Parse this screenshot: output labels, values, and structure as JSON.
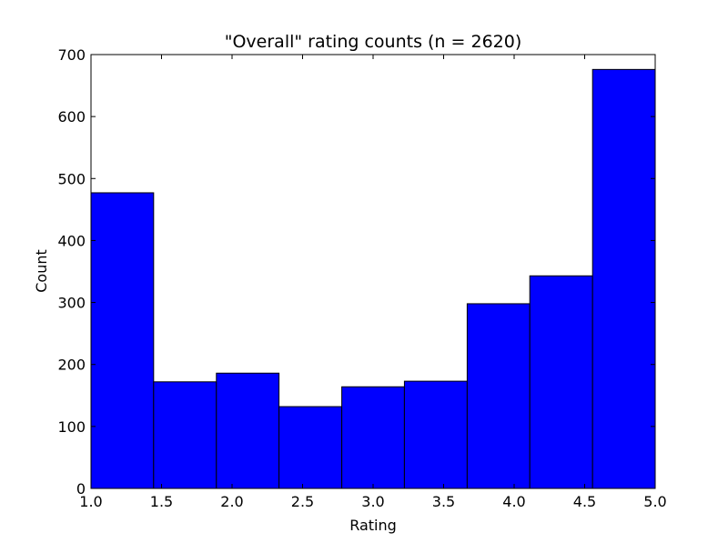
{
  "chart_data": {
    "type": "bar",
    "title": "\"Overall\" rating counts (n = 2620)",
    "xlabel": "Rating",
    "ylabel": "Count",
    "xlim": [
      1.0,
      5.0
    ],
    "ylim": [
      0,
      700
    ],
    "x_ticks": [
      "1.0",
      "1.5",
      "2.0",
      "2.5",
      "3.0",
      "3.5",
      "4.0",
      "4.5",
      "5.0"
    ],
    "y_ticks": [
      "0",
      "100",
      "200",
      "300",
      "400",
      "500",
      "600",
      "700"
    ],
    "bin_edges": [
      1.0,
      1.444,
      1.889,
      2.333,
      2.778,
      3.222,
      3.667,
      4.111,
      4.556,
      5.0
    ],
    "values": [
      477,
      172,
      186,
      132,
      164,
      173,
      298,
      343,
      676
    ],
    "grid": false,
    "colors": {
      "bar": "#0000ff",
      "edge": "#000000"
    }
  }
}
